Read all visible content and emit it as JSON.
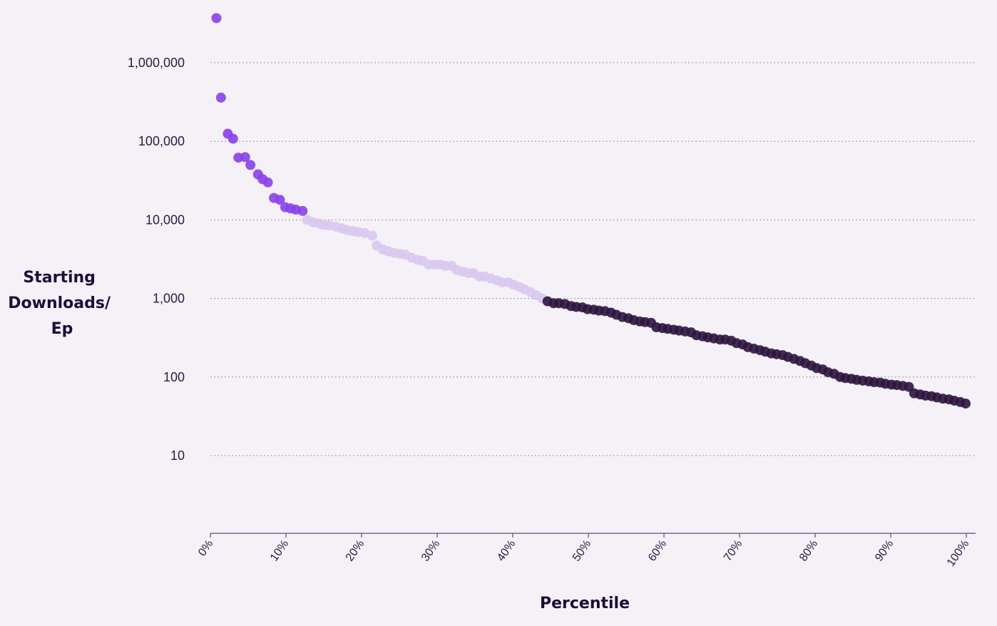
{
  "chart_data": {
    "type": "scatter",
    "xlabel": "Percentile",
    "ylabel_lines": [
      "Starting",
      "Downloads/",
      "Ep"
    ],
    "yscale": "log",
    "ylim": [
      1,
      10000000
    ],
    "xlim": [
      0,
      100
    ],
    "grid": true,
    "y_ticks": [
      {
        "value": 10,
        "label": "10"
      },
      {
        "value": 100,
        "label": "100"
      },
      {
        "value": 1000,
        "label": "1,000"
      },
      {
        "value": 10000,
        "label": "10,000"
      },
      {
        "value": 100000,
        "label": "100,000"
      },
      {
        "value": 1000000,
        "label": "1,000,000"
      }
    ],
    "x_ticks": [
      {
        "value": 0,
        "label": "0%"
      },
      {
        "value": 10,
        "label": "10%"
      },
      {
        "value": 20,
        "label": "20%"
      },
      {
        "value": 30,
        "label": "30%"
      },
      {
        "value": 40,
        "label": "40%"
      },
      {
        "value": 50,
        "label": "50%"
      },
      {
        "value": 60,
        "label": "60%"
      },
      {
        "value": 70,
        "label": "70%"
      },
      {
        "value": 80,
        "label": "80%"
      },
      {
        "value": 90,
        "label": "90%"
      },
      {
        "value": 100,
        "label": "100%"
      }
    ],
    "series": [
      {
        "color": "#8a3ff0",
        "points": [
          [
            0.8,
            3700000
          ],
          [
            1.4,
            360000
          ],
          [
            2.3,
            125000
          ],
          [
            3.0,
            108000
          ],
          [
            3.7,
            62000
          ],
          [
            4.6,
            63000
          ],
          [
            5.3,
            50000
          ],
          [
            6.3,
            38000
          ],
          [
            6.9,
            33000
          ],
          [
            7.6,
            30000
          ],
          [
            8.4,
            19000
          ],
          [
            9.2,
            18000
          ],
          [
            9.9,
            14500
          ],
          [
            10.6,
            14000
          ],
          [
            11.3,
            13500
          ],
          [
            12.2,
            13000
          ]
        ]
      },
      {
        "color": "#d8c8ee",
        "points": [
          [
            12.8,
            10000
          ],
          [
            13.6,
            9300
          ],
          [
            14.4,
            9000
          ],
          [
            15.0,
            8600
          ],
          [
            15.7,
            8500
          ],
          [
            16.6,
            8200
          ],
          [
            17.4,
            7800
          ],
          [
            18.1,
            7400
          ],
          [
            18.9,
            7200
          ],
          [
            19.6,
            7000
          ],
          [
            20.4,
            6800
          ],
          [
            21.4,
            6300
          ],
          [
            22.0,
            4700
          ],
          [
            22.8,
            4200
          ],
          [
            23.5,
            4000
          ],
          [
            24.3,
            3800
          ],
          [
            25.1,
            3700
          ],
          [
            25.8,
            3600
          ],
          [
            26.6,
            3300
          ],
          [
            27.4,
            3100
          ],
          [
            28.1,
            3000
          ],
          [
            28.9,
            2700
          ],
          [
            29.7,
            2700
          ],
          [
            30.4,
            2700
          ],
          [
            31.1,
            2600
          ],
          [
            31.9,
            2600
          ],
          [
            32.6,
            2300
          ],
          [
            33.4,
            2200
          ],
          [
            34.1,
            2100
          ],
          [
            34.8,
            2100
          ],
          [
            35.6,
            1900
          ],
          [
            36.3,
            1900
          ],
          [
            37.1,
            1800
          ],
          [
            37.9,
            1700
          ],
          [
            38.6,
            1600
          ],
          [
            39.4,
            1600
          ],
          [
            40.1,
            1500
          ],
          [
            40.9,
            1400
          ],
          [
            41.6,
            1300
          ],
          [
            42.4,
            1200
          ],
          [
            43.1,
            1100
          ],
          [
            43.9,
            1000
          ]
        ]
      },
      {
        "color": "#2d1540",
        "points": [
          [
            44.6,
            920
          ],
          [
            45.4,
            870
          ],
          [
            46.1,
            870
          ],
          [
            46.9,
            850
          ],
          [
            47.7,
            800
          ],
          [
            48.4,
            780
          ],
          [
            49.2,
            770
          ],
          [
            49.9,
            730
          ],
          [
            50.7,
            720
          ],
          [
            51.4,
            700
          ],
          [
            52.2,
            690
          ],
          [
            53.0,
            660
          ],
          [
            53.7,
            620
          ],
          [
            54.5,
            580
          ],
          [
            55.3,
            560
          ],
          [
            56.0,
            530
          ],
          [
            56.8,
            510
          ],
          [
            57.5,
            500
          ],
          [
            58.3,
            490
          ],
          [
            59.0,
            430
          ],
          [
            59.8,
            420
          ],
          [
            60.5,
            410
          ],
          [
            61.3,
            400
          ],
          [
            62.0,
            390
          ],
          [
            62.8,
            380
          ],
          [
            63.6,
            370
          ],
          [
            64.3,
            340
          ],
          [
            65.1,
            330
          ],
          [
            65.8,
            320
          ],
          [
            66.6,
            310
          ],
          [
            67.4,
            300
          ],
          [
            68.1,
            300
          ],
          [
            68.9,
            290
          ],
          [
            69.6,
            270
          ],
          [
            70.4,
            260
          ],
          [
            71.1,
            240
          ],
          [
            71.9,
            230
          ],
          [
            72.7,
            220
          ],
          [
            73.4,
            210
          ],
          [
            74.2,
            200
          ],
          [
            74.9,
            195
          ],
          [
            75.7,
            190
          ],
          [
            76.4,
            180
          ],
          [
            77.2,
            170
          ],
          [
            78.0,
            160
          ],
          [
            78.7,
            150
          ],
          [
            79.5,
            140
          ],
          [
            80.2,
            130
          ],
          [
            81.0,
            125
          ],
          [
            81.7,
            115
          ],
          [
            82.5,
            110
          ],
          [
            83.3,
            100
          ],
          [
            84.0,
            97
          ],
          [
            84.8,
            95
          ],
          [
            85.5,
            92
          ],
          [
            86.3,
            90
          ],
          [
            87.1,
            88
          ],
          [
            87.8,
            86
          ],
          [
            88.6,
            85
          ],
          [
            89.3,
            82
          ],
          [
            90.1,
            80
          ],
          [
            90.8,
            79
          ],
          [
            91.6,
            77
          ],
          [
            92.4,
            75
          ],
          [
            93.1,
            62
          ],
          [
            93.9,
            60
          ],
          [
            94.6,
            58
          ],
          [
            95.4,
            57
          ],
          [
            96.1,
            55
          ],
          [
            96.9,
            53
          ],
          [
            97.7,
            52
          ],
          [
            98.4,
            50
          ],
          [
            99.2,
            48
          ],
          [
            99.9,
            46
          ]
        ]
      }
    ]
  }
}
